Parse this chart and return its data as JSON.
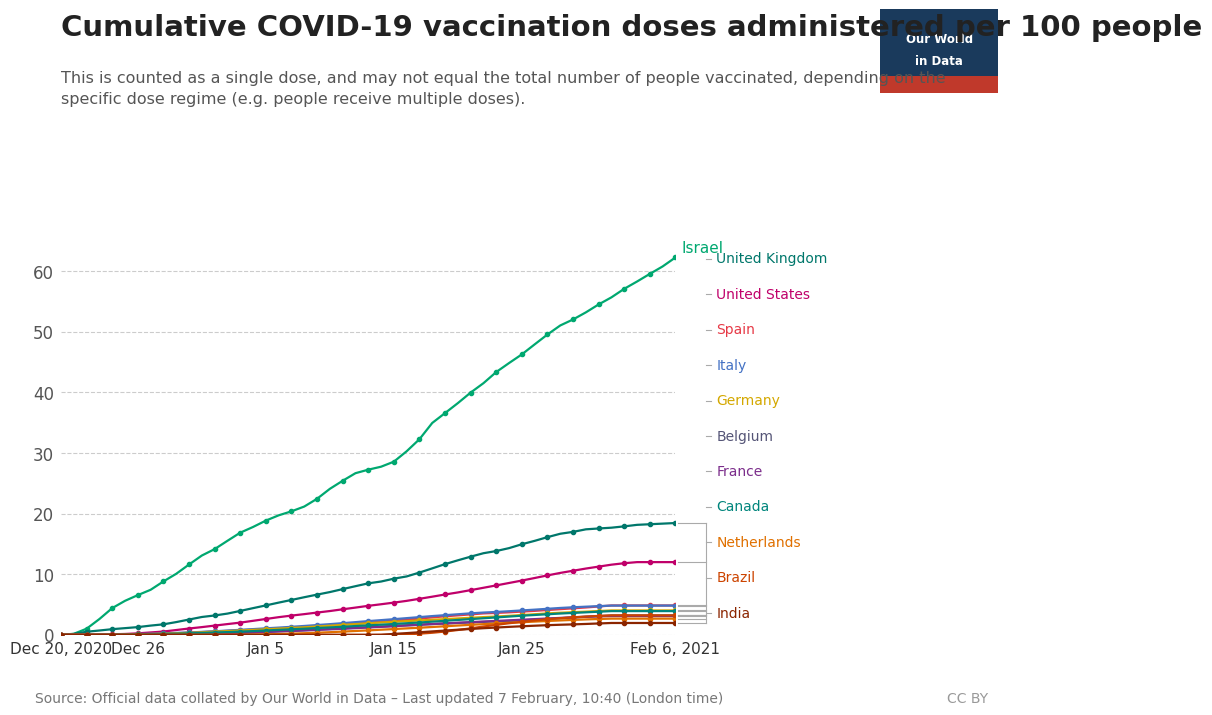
{
  "title": "Cumulative COVID-19 vaccination doses administered per 100 people",
  "subtitle": "This is counted as a single dose, and may not equal the total number of people vaccinated, depending on the\nspecific dose regime (e.g. people receive multiple doses).",
  "source": "Source: Official data collated by Our World in Data – Last updated 7 February, 10:40 (London time)",
  "cc_by": "CC BY",
  "background_color": "#ffffff",
  "grid_color": "#cccccc",
  "title_fontsize": 21,
  "subtitle_fontsize": 11.5,
  "source_fontsize": 10,
  "countries": [
    "Israel",
    "United Kingdom",
    "United States",
    "Spain",
    "Italy",
    "Germany",
    "Belgium",
    "France",
    "Canada",
    "Netherlands",
    "Brazil",
    "India"
  ],
  "colors": {
    "Israel": "#00a870",
    "United Kingdom": "#00776b",
    "United States": "#c0006a",
    "Spain": "#e63946",
    "Italy": "#4472c4",
    "Germany": "#d4a800",
    "Belgium": "#555577",
    "France": "#7b2d8b",
    "Canada": "#00857c",
    "Netherlands": "#e07000",
    "Brazil": "#cc4400",
    "India": "#8b2500"
  },
  "start_date": "2020-12-20",
  "num_days": 49,
  "israel": [
    0.0,
    0.18,
    1.02,
    2.62,
    4.42,
    5.62,
    6.56,
    7.44,
    8.82,
    10.08,
    11.61,
    13.09,
    14.15,
    15.52,
    16.86,
    17.8,
    18.85,
    19.72,
    20.38,
    21.17,
    22.45,
    24.09,
    25.42,
    26.67,
    27.25,
    27.74,
    28.57,
    30.29,
    32.28,
    34.96,
    36.59,
    38.23,
    39.97,
    41.52,
    43.36,
    44.84,
    46.27,
    47.92,
    49.55,
    51.04,
    52.03,
    53.2,
    54.51,
    55.68,
    57.09,
    58.29,
    59.55,
    60.78,
    62.26
  ],
  "uk": [
    0.0,
    0.15,
    0.52,
    0.72,
    0.94,
    1.11,
    1.28,
    1.53,
    1.74,
    2.11,
    2.53,
    2.95,
    3.2,
    3.51,
    3.95,
    4.41,
    4.86,
    5.32,
    5.76,
    6.21,
    6.64,
    7.06,
    7.55,
    8.03,
    8.5,
    8.8,
    9.27,
    9.64,
    10.28,
    10.97,
    11.67,
    12.3,
    12.9,
    13.47,
    13.83,
    14.31,
    14.95,
    15.51,
    16.12,
    16.68,
    16.99,
    17.41,
    17.55,
    17.68,
    17.9,
    18.15,
    18.25,
    18.35,
    18.45
  ],
  "us": [
    0.0,
    0.01,
    0.02,
    0.05,
    0.1,
    0.15,
    0.25,
    0.4,
    0.55,
    0.8,
    1.05,
    1.28,
    1.53,
    1.78,
    2.02,
    2.32,
    2.62,
    2.92,
    3.18,
    3.42,
    3.68,
    3.93,
    4.22,
    4.5,
    4.79,
    5.05,
    5.32,
    5.61,
    5.95,
    6.3,
    6.66,
    7.0,
    7.38,
    7.77,
    8.16,
    8.56,
    8.96,
    9.38,
    9.81,
    10.22,
    10.58,
    10.94,
    11.26,
    11.58,
    11.82,
    12.0,
    12.0,
    12.0,
    12.0
  ],
  "spain": [
    0.0,
    0.0,
    0.0,
    0.02,
    0.05,
    0.08,
    0.12,
    0.16,
    0.2,
    0.27,
    0.36,
    0.46,
    0.56,
    0.66,
    0.76,
    0.86,
    0.97,
    1.08,
    1.19,
    1.32,
    1.44,
    1.56,
    1.7,
    1.86,
    2.02,
    2.18,
    2.35,
    2.52,
    2.7,
    2.88,
    3.06,
    3.22,
    3.38,
    3.54,
    3.62,
    3.72,
    3.84,
    3.96,
    4.1,
    4.24,
    4.38,
    4.52,
    4.68,
    4.85,
    4.85,
    4.85,
    4.85,
    4.85,
    4.85
  ],
  "italy": [
    0.0,
    0.0,
    0.0,
    0.02,
    0.05,
    0.09,
    0.14,
    0.19,
    0.25,
    0.32,
    0.4,
    0.49,
    0.59,
    0.71,
    0.83,
    0.95,
    1.08,
    1.2,
    1.33,
    1.47,
    1.62,
    1.77,
    1.93,
    2.1,
    2.27,
    2.43,
    2.59,
    2.76,
    2.93,
    3.1,
    3.25,
    3.4,
    3.55,
    3.68,
    3.78,
    3.9,
    4.03,
    4.16,
    4.3,
    4.44,
    4.55,
    4.65,
    4.74,
    4.83,
    4.83,
    4.83,
    4.83,
    4.83,
    4.83
  ],
  "germany": [
    0.0,
    0.0,
    0.0,
    0.01,
    0.03,
    0.06,
    0.1,
    0.14,
    0.19,
    0.25,
    0.33,
    0.42,
    0.52,
    0.62,
    0.72,
    0.82,
    0.92,
    1.03,
    1.14,
    1.25,
    1.38,
    1.51,
    1.64,
    1.77,
    1.91,
    2.04,
    2.16,
    2.27,
    2.38,
    2.49,
    2.6,
    2.71,
    2.82,
    2.93,
    3.02,
    3.14,
    3.27,
    3.4,
    3.54,
    3.65,
    3.74,
    3.83,
    3.93,
    4.03,
    4.03,
    4.03,
    4.03,
    4.03,
    4.03
  ],
  "belgium": [
    0.0,
    0.0,
    0.0,
    0.0,
    0.0,
    0.01,
    0.02,
    0.04,
    0.06,
    0.09,
    0.13,
    0.18,
    0.24,
    0.3,
    0.37,
    0.45,
    0.53,
    0.61,
    0.69,
    0.78,
    0.87,
    0.97,
    1.07,
    1.17,
    1.27,
    1.37,
    1.48,
    1.58,
    1.68,
    1.78,
    1.87,
    1.96,
    2.05,
    2.14,
    2.22,
    2.3,
    2.4,
    2.5,
    2.62,
    2.74,
    2.86,
    2.98,
    3.1,
    3.2,
    3.2,
    3.2,
    3.2,
    3.2,
    3.2
  ],
  "france": [
    0.0,
    0.0,
    0.0,
    0.0,
    0.01,
    0.01,
    0.01,
    0.02,
    0.03,
    0.05,
    0.08,
    0.12,
    0.17,
    0.23,
    0.3,
    0.38,
    0.46,
    0.55,
    0.63,
    0.72,
    0.82,
    0.91,
    1.01,
    1.11,
    1.22,
    1.32,
    1.43,
    1.55,
    1.67,
    1.79,
    1.9,
    2.0,
    2.1,
    2.2,
    2.3,
    2.4,
    2.5,
    2.6,
    2.7,
    2.8,
    2.9,
    2.98,
    3.06,
    3.1,
    3.1,
    3.1,
    3.1,
    3.1,
    3.1
  ],
  "canada": [
    0.0,
    0.0,
    0.0,
    0.01,
    0.02,
    0.04,
    0.07,
    0.1,
    0.14,
    0.19,
    0.25,
    0.32,
    0.39,
    0.46,
    0.54,
    0.62,
    0.72,
    0.82,
    0.92,
    1.02,
    1.13,
    1.23,
    1.34,
    1.46,
    1.57,
    1.68,
    1.8,
    1.92,
    2.04,
    2.18,
    2.32,
    2.46,
    2.6,
    2.74,
    2.88,
    3.02,
    3.16,
    3.28,
    3.4,
    3.52,
    3.62,
    3.72,
    3.82,
    3.92,
    3.92,
    3.92,
    3.92,
    3.92,
    3.92
  ],
  "netherlands": [
    0.0,
    0.0,
    0.0,
    0.0,
    0.0,
    0.0,
    0.0,
    0.0,
    0.0,
    0.0,
    0.0,
    0.0,
    0.0,
    0.0,
    0.02,
    0.05,
    0.09,
    0.14,
    0.2,
    0.27,
    0.35,
    0.44,
    0.54,
    0.64,
    0.74,
    0.85,
    0.96,
    1.07,
    1.18,
    1.3,
    1.42,
    1.54,
    1.66,
    1.77,
    1.88,
    1.99,
    2.09,
    2.19,
    2.29,
    2.38,
    2.47,
    2.55,
    2.62,
    2.68,
    2.68,
    2.68,
    2.68,
    2.68,
    2.68
  ],
  "brazil": [
    0.0,
    0.0,
    0.0,
    0.0,
    0.0,
    0.0,
    0.0,
    0.0,
    0.0,
    0.0,
    0.0,
    0.0,
    0.0,
    0.0,
    0.0,
    0.0,
    0.0,
    0.0,
    0.0,
    0.0,
    0.0,
    0.0,
    0.0,
    0.0,
    0.0,
    0.02,
    0.05,
    0.1,
    0.2,
    0.35,
    0.55,
    0.8,
    1.08,
    1.38,
    1.65,
    1.92,
    2.15,
    2.37,
    2.58,
    2.75,
    2.9,
    3.02,
    3.12,
    3.22,
    3.22,
    3.22,
    3.22,
    3.22,
    3.22
  ],
  "india": [
    0.0,
    0.0,
    0.0,
    0.0,
    0.0,
    0.0,
    0.0,
    0.0,
    0.0,
    0.0,
    0.0,
    0.0,
    0.0,
    0.0,
    0.0,
    0.0,
    0.0,
    0.0,
    0.0,
    0.0,
    0.0,
    0.0,
    0.0,
    0.0,
    0.0,
    0.0,
    0.16,
    0.29,
    0.43,
    0.57,
    0.71,
    0.85,
    0.97,
    1.1,
    1.21,
    1.32,
    1.42,
    1.51,
    1.6,
    1.67,
    1.73,
    1.8,
    1.88,
    1.96,
    1.96,
    1.96,
    1.96,
    1.96,
    1.96
  ],
  "ylim": [
    0,
    65
  ],
  "yticks": [
    0,
    10,
    20,
    30,
    40,
    50,
    60
  ],
  "xtick_dates": [
    "Dec 20, 2020",
    "Dec 26",
    "Jan 5",
    "Jan 15",
    "Jan 25",
    "Feb 6, 2021"
  ],
  "xtick_day_offsets": [
    0,
    6,
    16,
    26,
    36,
    48
  ],
  "legend_order": [
    "United Kingdom",
    "United States",
    "Spain",
    "Italy",
    "Germany",
    "Belgium",
    "France",
    "Canada",
    "Netherlands",
    "Brazil",
    "India"
  ]
}
